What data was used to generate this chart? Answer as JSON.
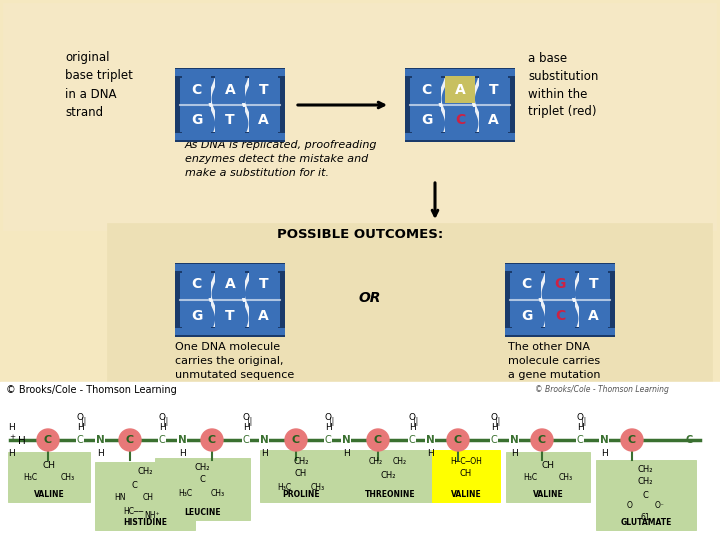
{
  "bg_outer": "#f5e8c0",
  "bg_panel": "#ede0b0",
  "dna_blue": "#3a70b8",
  "dna_dark": "#1a3a6a",
  "dna_light": "#6a9fd8",
  "red_letter": "#cc2244",
  "yellow_bg_cell": "#c8b820",
  "green_line": "#3a7030",
  "green_box": "#c0d8a0",
  "yellow_highlight": "#ffff00",
  "red_circle": "#e87878",
  "white": "#ffffff",
  "title_outcomes": "POSSIBLE OUTCOMES:",
  "label_left_top": "original\nbase triplet\nin a DNA\nstrand",
  "label_right_top": "a base\nsubstitution\nwithin the\ntriplet (red)",
  "label_left_bottom": "One DNA molecule\ncarries the original,\nunmutated sequence",
  "label_right_bottom": "The other DNA\nmolecule carries\na gene mutation",
  "italic_text": "As DNA is replicated, proofreading\nenzymes detect the mistake and\nmake a substitution for it.",
  "or_text": "OR",
  "copyright1": "© Brooks/Cole - Thomson Learning",
  "copyright2": "© Brooks/Cole - Thomson Learning",
  "figsize": [
    7.2,
    5.4
  ],
  "dpi": 100
}
